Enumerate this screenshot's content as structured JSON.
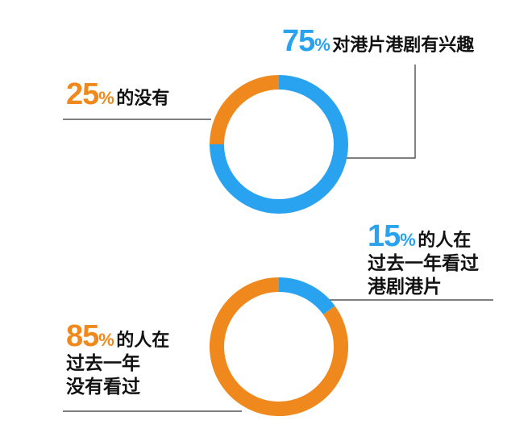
{
  "colors": {
    "blue": "#29a3ef",
    "orange": "#f0891d",
    "line": "#333333"
  },
  "chart_data": [
    {
      "type": "pie",
      "variant": "donut",
      "slices": [
        {
          "value": 75,
          "color": "#29a3ef"
        },
        {
          "value": 25,
          "color": "#f0891d"
        }
      ],
      "labels": [
        {
          "percent": "75",
          "symbol": "%",
          "text": [
            "对港片港剧有兴趣"
          ]
        },
        {
          "percent": "25",
          "symbol": "%",
          "text": [
            "的没有"
          ]
        }
      ]
    },
    {
      "type": "pie",
      "variant": "donut",
      "slices": [
        {
          "value": 15,
          "color": "#29a3ef"
        },
        {
          "value": 85,
          "color": "#f0891d"
        }
      ],
      "labels": [
        {
          "percent": "15",
          "symbol": "%",
          "text": [
            "的人在",
            "过去一年看过",
            "港剧港片"
          ]
        },
        {
          "percent": "85",
          "symbol": "%",
          "text": [
            "的人在",
            "过去一年",
            "没有看过"
          ]
        }
      ]
    }
  ]
}
